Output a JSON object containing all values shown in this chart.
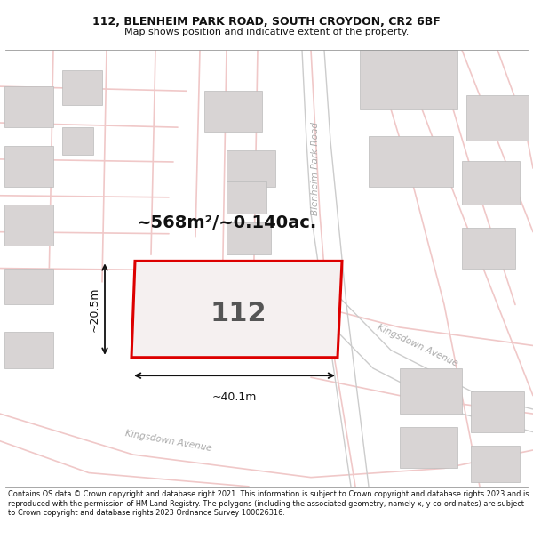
{
  "title_line1": "112, BLENHEIM PARK ROAD, SOUTH CROYDON, CR2 6BF",
  "title_line2": "Map shows position and indicative extent of the property.",
  "footer": "Contains OS data © Crown copyright and database right 2021. This information is subject to Crown copyright and database rights 2023 and is reproduced with the permission of HM Land Registry. The polygons (including the associated geometry, namely x, y co-ordinates) are subject to Crown copyright and database rights 2023 Ordnance Survey 100026316.",
  "area_text": "~568m²/~0.140ac.",
  "plot_number": "112",
  "dim_width": "~40.1m",
  "dim_height": "~20.5m",
  "map_bg": "#ffffff",
  "plot_fill": "#f5f0f0",
  "plot_edge": "#dd0000",
  "road_color": "#f0c8c8",
  "road_color2": "#cccccc",
  "building_fill": "#d8d4d4",
  "building_edge": "#bbbbbb",
  "road_label_color": "#aaaaaa",
  "title_color": "#111111",
  "footer_color": "#111111",
  "dim_color": "#111111",
  "area_color": "#111111"
}
